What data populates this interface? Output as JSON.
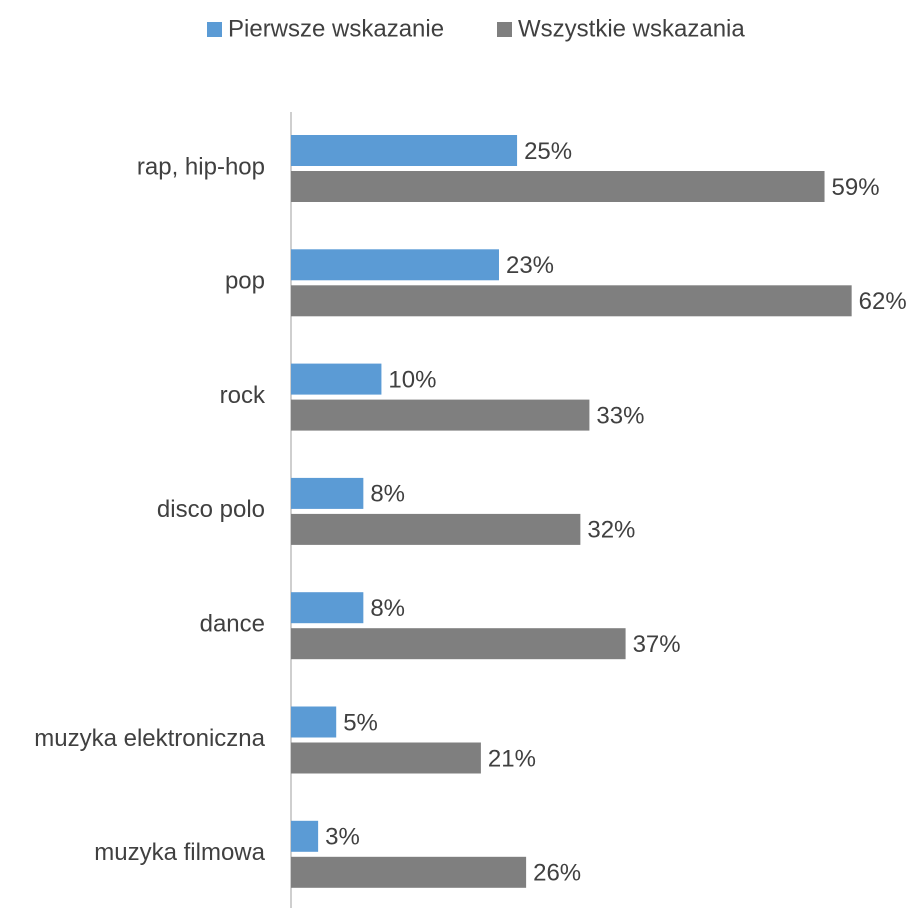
{
  "chart_data": {
    "type": "hbar",
    "categories": [
      "rap, hip-hop",
      "pop",
      "rock",
      "disco polo",
      "dance",
      "muzyka elektroniczna",
      "muzyka filmowa"
    ],
    "series": [
      {
        "name": "Pierwsze wskazanie",
        "color": "#5b9bd5",
        "values": [
          25,
          23,
          10,
          8,
          8,
          5,
          3
        ],
        "value_labels": [
          "25%",
          "23%",
          "10%",
          "8%",
          "8%",
          "5%",
          "3%"
        ]
      },
      {
        "name": "Wszystkie wskazania",
        "color": "#7f7f7f",
        "values": [
          59,
          62,
          33,
          32,
          37,
          21,
          26
        ],
        "value_labels": [
          "59%",
          "62%",
          "33%",
          "32%",
          "37%",
          "21%",
          "26%"
        ]
      }
    ],
    "xlim": [
      0,
      70
    ],
    "legend": "top"
  }
}
